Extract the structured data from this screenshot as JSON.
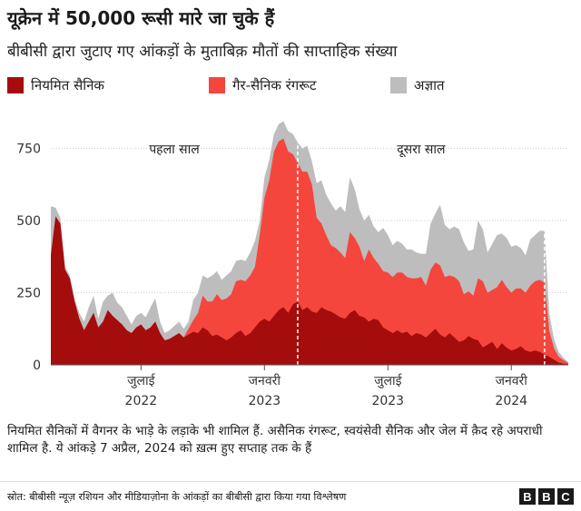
{
  "header": {
    "title": "यूक्रेन में 50,000 रूसी मारे जा चुके हैं",
    "subtitle": "बीबीसी द्वारा जुटाए गए आंकड़ों के मुताबिक़ मौतों की साप्ताहिक संख्या"
  },
  "colors": {
    "regular": "#a50d0d",
    "recruit": "#f5463e",
    "unknown": "#bdbdbd",
    "divider": "#ffffff",
    "axis_text": "#333333",
    "grid": "#cccccc"
  },
  "footer": {
    "note": "नियमित सैनिकों में वैगनर के भाड़े के लड़ाके भी शामिल हैं. असैनिक रंगरूट, स्वयंसेवी सैनिक और जेल में क़ैद रहे अपराधी शामिल है. ये आंकड़े 7 अप्रैल, 2024 को ख़त्म हुए सप्ताह तक के हैं",
    "source": "स्रोत: बीबीसी न्यूज़ रशियन और मीडियाज़ोना के आंकड़ों का बीबीसी द्वारा किया गया विश्लेषण",
    "logo_letters": [
      "B",
      "B",
      "C"
    ]
  },
  "chart_data": {
    "type": "area",
    "stacked": true,
    "ylim": [
      0,
      900
    ],
    "yticks": [
      0,
      250,
      500,
      750
    ],
    "grid": true,
    "legend_position": "top",
    "x_is_week_index": true,
    "x_axis_labels": [
      {
        "week": 19,
        "line1": "जुलाई",
        "line2": "2022"
      },
      {
        "week": 45,
        "line1": "जनवरी",
        "line2": "2023"
      },
      {
        "week": 71,
        "line1": "जुलाई",
        "line2": "2023"
      },
      {
        "week": 97,
        "line1": "जनवरी",
        "line2": "2024"
      }
    ],
    "periods": [
      {
        "label": "पहला साल",
        "start_week": 0,
        "end_week": 52
      },
      {
        "label": "दूसरा साल",
        "start_week": 52,
        "end_week": 104
      }
    ],
    "dividers": [
      52,
      104
    ],
    "weeks": 110,
    "series": [
      {
        "name": "नियमित सैनिक",
        "values": [
          380,
          515,
          490,
          330,
          300,
          220,
          160,
          120,
          150,
          180,
          130,
          150,
          190,
          170,
          155,
          140,
          120,
          110,
          130,
          140,
          120,
          130,
          150,
          110,
          85,
          90,
          100,
          110,
          95,
          105,
          115,
          110,
          130,
          120,
          100,
          105,
          95,
          85,
          95,
          110,
          120,
          100,
          110,
          130,
          150,
          160,
          150,
          170,
          190,
          200,
          180,
          210,
          220,
          190,
          200,
          185,
          180,
          200,
          190,
          185,
          175,
          165,
          160,
          180,
          190,
          170,
          165,
          150,
          160,
          155,
          130,
          120,
          110,
          120,
          110,
          115,
          100,
          110,
          105,
          95,
          110,
          125,
          105,
          95,
          110,
          95,
          80,
          85,
          100,
          90,
          85,
          60,
          70,
          80,
          55,
          75,
          60,
          50,
          55,
          65,
          50,
          45,
          50,
          45,
          35,
          28,
          18,
          8,
          4,
          2
        ]
      },
      {
        "name": "गैर-सैनिक रंगरूट",
        "values": [
          0,
          0,
          0,
          0,
          0,
          0,
          0,
          0,
          0,
          0,
          0,
          0,
          0,
          0,
          0,
          0,
          0,
          0,
          0,
          0,
          0,
          0,
          0,
          0,
          0,
          0,
          0,
          0,
          0,
          20,
          40,
          70,
          110,
          100,
          120,
          140,
          130,
          145,
          150,
          180,
          175,
          190,
          200,
          210,
          300,
          420,
          490,
          570,
          585,
          585,
          560,
          520,
          480,
          480,
          470,
          440,
          330,
          290,
          260,
          230,
          230,
          225,
          210,
          280,
          250,
          240,
          195,
          250,
          210,
          195,
          195,
          200,
          195,
          200,
          210,
          190,
          200,
          190,
          200,
          180,
          220,
          230,
          240,
          210,
          200,
          210,
          210,
          160,
          155,
          150,
          215,
          230,
          180,
          180,
          215,
          220,
          210,
          200,
          210,
          200,
          200,
          230,
          240,
          250,
          250,
          90,
          40,
          20,
          12,
          4
        ]
      },
      {
        "name": "अज्ञात",
        "values": [
          170,
          30,
          20,
          10,
          10,
          10,
          20,
          30,
          50,
          60,
          30,
          70,
          50,
          80,
          60,
          60,
          50,
          30,
          40,
          40,
          45,
          70,
          80,
          40,
          25,
          30,
          35,
          40,
          30,
          25,
          70,
          70,
          70,
          80,
          90,
          80,
          70,
          80,
          80,
          70,
          70,
          70,
          80,
          90,
          50,
          70,
          70,
          60,
          60,
          60,
          70,
          70,
          70,
          80,
          90,
          80,
          120,
          150,
          140,
          145,
          130,
          160,
          160,
          190,
          170,
          130,
          140,
          120,
          110,
          110,
          150,
          130,
          110,
          110,
          100,
          95,
          100,
          90,
          80,
          110,
          160,
          170,
          210,
          180,
          160,
          175,
          180,
          180,
          140,
          160,
          200,
          180,
          140,
          160,
          180,
          160,
          170,
          160,
          150,
          140,
          130,
          160,
          160,
          170,
          180,
          60,
          30,
          16,
          8,
          4
        ]
      }
    ]
  }
}
